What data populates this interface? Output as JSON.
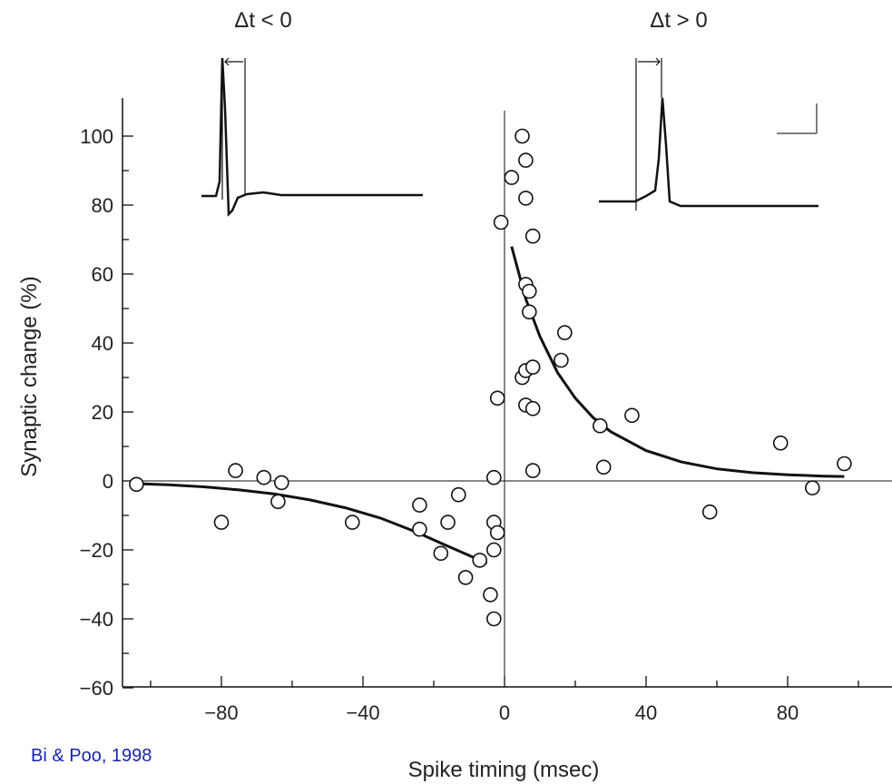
{
  "citation": "Bi & Poo, 1998",
  "colors": {
    "ink": "#111111",
    "citation": "#1a23b0"
  },
  "chart_data": {
    "type": "scatter",
    "xlabel": "Spike timing (msec)",
    "ylabel": "Synaptic change (%)",
    "xlim": [
      -110,
      110
    ],
    "ylim": [
      -60,
      110
    ],
    "xticks": [
      -80,
      -40,
      0,
      40,
      80
    ],
    "xtick_labels": [
      "−80",
      "−40",
      "0",
      "40",
      "80"
    ],
    "yticks": [
      -60,
      -40,
      -20,
      0,
      20,
      40,
      60,
      80,
      100
    ],
    "ytick_labels": [
      "−60",
      "−40",
      "−20",
      "0",
      "20",
      "40",
      "60",
      "80",
      "100"
    ],
    "grid": false,
    "inset_labels": {
      "left": "Δt < 0",
      "right": "Δt > 0"
    },
    "points": [
      [
        -104,
        -1
      ],
      [
        -80,
        -12
      ],
      [
        -76,
        3
      ],
      [
        -68,
        1
      ],
      [
        -64,
        -6
      ],
      [
        -63,
        -0.5
      ],
      [
        -43,
        -12
      ],
      [
        -24,
        -7
      ],
      [
        -24,
        -14
      ],
      [
        -18,
        -21
      ],
      [
        -16,
        -12
      ],
      [
        -13,
        -4
      ],
      [
        -11,
        -28
      ],
      [
        -7,
        -23
      ],
      [
        -4,
        -33
      ],
      [
        -3,
        -12
      ],
      [
        -3,
        -20
      ],
      [
        -3,
        -40
      ],
      [
        -2,
        -15
      ],
      [
        -3,
        1
      ],
      [
        -2,
        24
      ],
      [
        -1,
        75
      ],
      [
        2,
        88
      ],
      [
        5,
        100
      ],
      [
        6,
        93
      ],
      [
        6,
        82
      ],
      [
        8,
        71
      ],
      [
        6,
        57
      ],
      [
        7,
        55
      ],
      [
        7,
        49
      ],
      [
        5,
        30
      ],
      [
        6,
        32
      ],
      [
        8,
        33
      ],
      [
        6,
        22
      ],
      [
        8,
        21
      ],
      [
        8,
        3
      ],
      [
        17,
        43
      ],
      [
        16,
        35
      ],
      [
        27,
        16
      ],
      [
        28,
        4
      ],
      [
        36,
        19
      ],
      [
        58,
        -9
      ],
      [
        78,
        11
      ],
      [
        87,
        -2
      ],
      [
        96,
        5
      ]
    ],
    "fit_curves": [
      {
        "x": [
          -104,
          -95,
          -85,
          -75,
          -65,
          -55,
          -45,
          -35,
          -25,
          -17,
          -10,
          -5
        ],
        "y": [
          -0.8,
          -1.1,
          -1.7,
          -2.6,
          -3.8,
          -5.5,
          -7.8,
          -10.8,
          -14.8,
          -18.5,
          -21.6,
          -24
        ]
      },
      {
        "x": [
          2,
          6,
          10,
          15,
          20,
          25,
          30,
          40,
          50,
          60,
          70,
          80,
          90,
          96
        ],
        "y": [
          68,
          52.8,
          41.9,
          31.4,
          24,
          18.4,
          14.3,
          8.8,
          5.5,
          3.5,
          2.4,
          1.8,
          1.4,
          1.3
        ]
      }
    ]
  }
}
